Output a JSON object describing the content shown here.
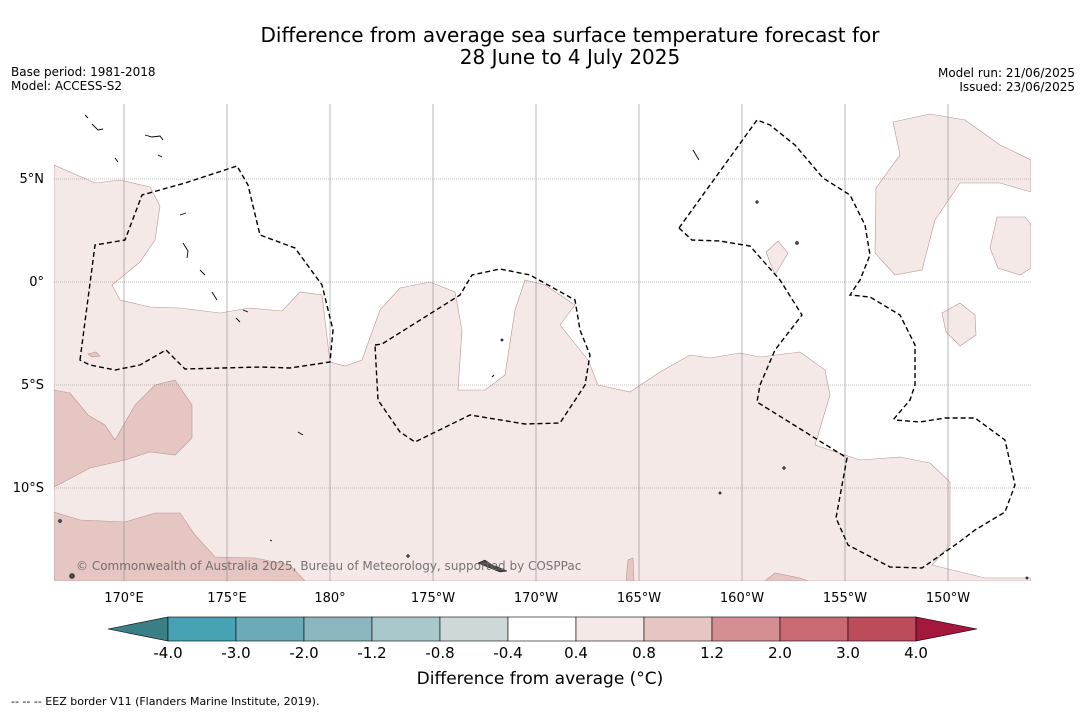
{
  "title": {
    "line1": "Difference from average sea surface temperature forecast for",
    "line2": "28 June to 4 July 2025"
  },
  "meta_left": {
    "base_period": "Base period: 1981-2018",
    "model": "Model: ACCESS-S2"
  },
  "meta_right": {
    "model_run": "Model run: 21/06/2025",
    "issued": "Issued: 23/06/2025"
  },
  "map": {
    "lat_labels": [
      "5°N",
      "0°",
      "5°S",
      "10°S"
    ],
    "lon_labels": [
      "170°E",
      "175°E",
      "180°",
      "175°W",
      "170°W",
      "165°W",
      "160°W",
      "155°W",
      "150°W"
    ],
    "copyright": "© Commonwealth of Australia 2025, Bureau of Meteorology, supported by COSPPac",
    "colors": {
      "anom_0_4_0_8": "#f5e9e8",
      "anom_0_8_1_2": "#e6c6c3",
      "land": "#4a4a4a",
      "grid": "#888888"
    }
  },
  "colorbar": {
    "title": "Difference from average (°C)",
    "tick_labels": [
      "-4.0",
      "-3.0",
      "-2.0",
      "-1.2",
      "-0.8",
      "-0.4",
      "0.4",
      "0.8",
      "1.2",
      "2.0",
      "3.0",
      "4.0"
    ],
    "low_extend_color": "#3a7f86",
    "high_extend_color": "#a3183c",
    "colors": [
      "#47a3b4",
      "#6daab8",
      "#8bb6c0",
      "#a9c8cc",
      "#cfd8d8",
      "#ffffff",
      "#f5e9e8",
      "#e6c6c3",
      "#d58e94",
      "#c96a73",
      "#bd4c5a"
    ]
  },
  "footnote": "--  --  -- EEZ border V11 (Flanders Marine Institute, 2019)."
}
